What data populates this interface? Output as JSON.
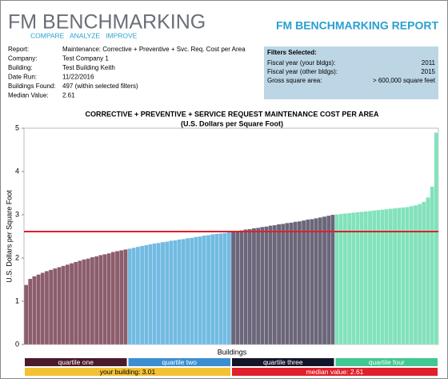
{
  "header": {
    "logo": "FM BENCHMARKING",
    "tagline": "COMPARE   ANALYZE   IMPROVE",
    "report_title": "FM BENCHMARKING REPORT"
  },
  "report_info": [
    [
      "Report:",
      "Maintenance: Corrective + Preventive + Svc. Req. Cost per Area"
    ],
    [
      "Company:",
      "Test Company 1"
    ],
    [
      "Building:",
      "Test Building Keith"
    ],
    [
      "Date Run:",
      "11/22/2016"
    ],
    [
      "Buildings Found:",
      "497 (within selected filters)"
    ],
    [
      "Median Value:",
      "2.61"
    ]
  ],
  "filters": {
    "title": "Filters Selected:",
    "rows": [
      [
        "Fiscal year (your bldgs):",
        "2011"
      ],
      [
        "Fiscal year (other bldgs):",
        "2015"
      ],
      [
        "Gross square area:",
        "> 600,000 square feet"
      ]
    ]
  },
  "chart_data": {
    "type": "bar",
    "title": "CORRECTIVE + PREVENTIVE + SERVICE REQUEST MAINTENANCE COST PER AREA",
    "subtitle": "(U.S. Dollars per Square Foot)",
    "x_label": "Buildings",
    "y_label": "U.S. Dollars per Square Foot",
    "series": [
      {
        "name": "quartile one",
        "color": "#8c5d6d",
        "legend_color": "#4b1a2b",
        "values": [
          1.38,
          1.52,
          1.58,
          1.62,
          1.66,
          1.7,
          1.73,
          1.76,
          1.79,
          1.82,
          1.85,
          1.88,
          1.91,
          1.94,
          1.97,
          1.99,
          2.02,
          2.04,
          2.07,
          2.09,
          2.11,
          2.14,
          2.16,
          2.18,
          2.2
        ]
      },
      {
        "name": "quartile two",
        "color": "#72bbe2",
        "legend_color": "#3b8fd0",
        "values": [
          2.22,
          2.24,
          2.26,
          2.28,
          2.3,
          2.32,
          2.34,
          2.35,
          2.37,
          2.38,
          2.4,
          2.41,
          2.43,
          2.44,
          2.46,
          2.47,
          2.49,
          2.5,
          2.52,
          2.53,
          2.55,
          2.56,
          2.57,
          2.58,
          2.6
        ]
      },
      {
        "name": "quartile three",
        "color": "#6c667a",
        "legend_color": "#15152a",
        "values": [
          2.61,
          2.63,
          2.64,
          2.66,
          2.67,
          2.69,
          2.7,
          2.72,
          2.73,
          2.75,
          2.76,
          2.78,
          2.79,
          2.81,
          2.82,
          2.84,
          2.85,
          2.87,
          2.89,
          2.9,
          2.92,
          2.94,
          2.96,
          2.98,
          3.0
        ]
      },
      {
        "name": "quartile four",
        "color": "#82e2bb",
        "legend_color": "#42c891",
        "values": [
          3.01,
          3.02,
          3.03,
          3.04,
          3.05,
          3.06,
          3.07,
          3.08,
          3.09,
          3.1,
          3.11,
          3.12,
          3.13,
          3.14,
          3.15,
          3.16,
          3.17,
          3.18,
          3.2,
          3.22,
          3.25,
          3.3,
          3.4,
          3.65,
          4.9
        ]
      }
    ],
    "median_line": 2.61,
    "median_color": "#e0202a",
    "ylim": [
      0,
      5
    ],
    "yticks": [
      0,
      1,
      2,
      3,
      4,
      5
    ],
    "footer": [
      {
        "text": "your building: 3.01",
        "color": "#f2c232"
      },
      {
        "text": "median value: 2.61",
        "color": "#e0202a"
      }
    ]
  }
}
